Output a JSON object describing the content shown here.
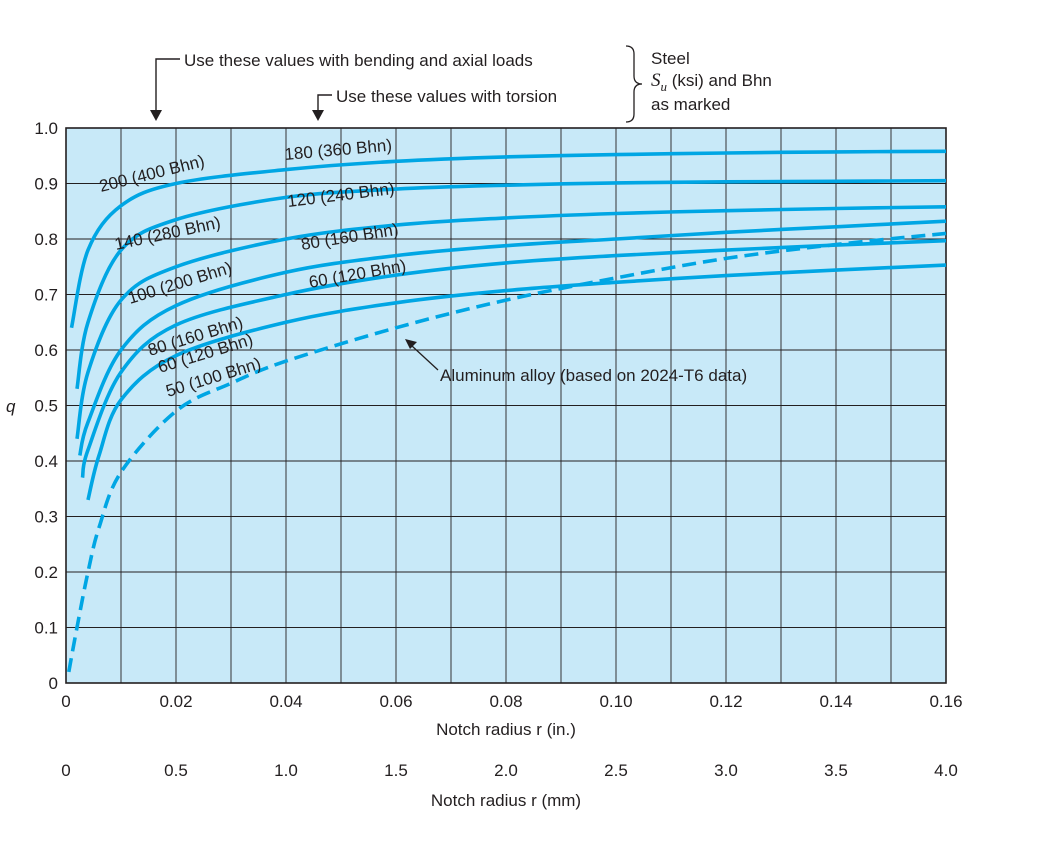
{
  "chart_data": {
    "type": "line",
    "title": "",
    "xlabel": "Notch radius r (in.)",
    "xlabel_secondary": "Notch radius r (mm)",
    "ylabel": "q",
    "xlim": [
      0,
      0.16
    ],
    "ylim": [
      0,
      1.0
    ],
    "x_ticks": [
      "0",
      "0.02",
      "0.04",
      "0.06",
      "0.08",
      "0.10",
      "0.12",
      "0.14",
      "0.16"
    ],
    "x_ticks_mm": [
      "0",
      "0.5",
      "1.0",
      "1.5",
      "2.0",
      "2.5",
      "3.0",
      "3.5",
      "4.0"
    ],
    "y_ticks": [
      "0",
      "0.1",
      "0.2",
      "0.3",
      "0.4",
      "0.5",
      "0.6",
      "0.7",
      "0.8",
      "0.9",
      "1.0"
    ],
    "grid": true,
    "background_color": "#c8e9f8",
    "curve_color": "#00a6e4",
    "series": [
      {
        "name": "200 (400 Bhn) / 180 (360 Bhn)",
        "x": [
          0.001,
          0.004,
          0.01,
          0.02,
          0.04,
          0.06,
          0.08,
          0.1,
          0.12,
          0.14,
          0.16
        ],
        "values": [
          0.64,
          0.78,
          0.86,
          0.9,
          0.925,
          0.94,
          0.948,
          0.952,
          0.955,
          0.957,
          0.958
        ]
      },
      {
        "name": "140 (280 Bhn) / 120 (240 Bhn)",
        "x": [
          0.002,
          0.004,
          0.01,
          0.02,
          0.04,
          0.06,
          0.08,
          0.1,
          0.12,
          0.14,
          0.16
        ],
        "values": [
          0.53,
          0.65,
          0.78,
          0.835,
          0.875,
          0.89,
          0.897,
          0.901,
          0.903,
          0.904,
          0.905
        ]
      },
      {
        "name": "100 (200 Bhn) / 80 (160 Bhn)",
        "x": [
          0.002,
          0.004,
          0.01,
          0.02,
          0.04,
          0.06,
          0.08,
          0.1,
          0.12,
          0.14,
          0.16
        ],
        "values": [
          0.44,
          0.56,
          0.69,
          0.75,
          0.8,
          0.825,
          0.838,
          0.846,
          0.851,
          0.855,
          0.858
        ]
      },
      {
        "name": "80 (160 Bhn) / 60 (120 Bhn)",
        "x": [
          0.0025,
          0.004,
          0.01,
          0.02,
          0.04,
          0.06,
          0.08,
          0.1,
          0.12,
          0.14,
          0.16
        ],
        "values": [
          0.41,
          0.47,
          0.6,
          0.68,
          0.74,
          0.77,
          0.788,
          0.8,
          0.812,
          0.822,
          0.832
        ]
      },
      {
        "name": "60 (120 Bhn)",
        "x": [
          0.003,
          0.004,
          0.01,
          0.02,
          0.04,
          0.06,
          0.08,
          0.1,
          0.12,
          0.14,
          0.16
        ],
        "values": [
          0.37,
          0.42,
          0.56,
          0.645,
          0.7,
          0.735,
          0.757,
          0.77,
          0.78,
          0.789,
          0.797
        ]
      },
      {
        "name": "50 (100 Bhn)",
        "x": [
          0.004,
          0.006,
          0.01,
          0.02,
          0.04,
          0.06,
          0.08,
          0.1,
          0.12,
          0.14,
          0.16
        ],
        "values": [
          0.33,
          0.41,
          0.51,
          0.59,
          0.65,
          0.685,
          0.707,
          0.722,
          0.734,
          0.744,
          0.753
        ]
      },
      {
        "name": "Aluminum alloy (based on 2024-T6 data)",
        "dashed": true,
        "x": [
          0.0005,
          0.002,
          0.004,
          0.006,
          0.01,
          0.02,
          0.03,
          0.04,
          0.06,
          0.08,
          0.1,
          0.12,
          0.14,
          0.16
        ],
        "values": [
          0.02,
          0.1,
          0.2,
          0.28,
          0.38,
          0.49,
          0.54,
          0.58,
          0.64,
          0.69,
          0.73,
          0.765,
          0.79,
          0.81
        ]
      }
    ],
    "curve_labels_bending": [
      "200 (400 Bhn)",
      "140 (280 Bhn)",
      "100 (200 Bhn)",
      "80 (160 Bhn)",
      "60 (120 Bhn)",
      "50 (100 Bhn)"
    ],
    "curve_labels_torsion": [
      "180 (360 Bhn)",
      "120 (240 Bhn)",
      "80 (160 Bhn)",
      "60 (120 Bhn)"
    ],
    "annotations": {
      "bending": "Use these values with bending and axial loads",
      "torsion": "Use these values with torsion",
      "steel_line1": "Steel",
      "steel_su": "S",
      "steel_su_sub": "u",
      "steel_su_rest": " (ksi) and Bhn",
      "steel_line3": "as marked",
      "aluminum": "Aluminum alloy (based on 2024-T6 data)"
    }
  }
}
